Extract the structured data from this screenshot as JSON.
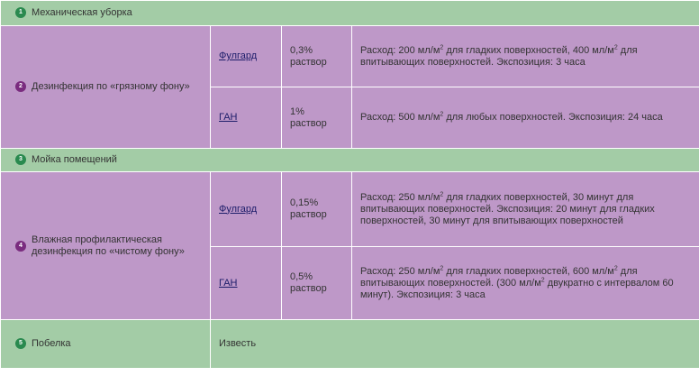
{
  "colors": {
    "green_row": "#a3cca6",
    "purple_row": "#be98c8",
    "green_badge": "#2a8a4f",
    "purple_badge": "#7a2c7f"
  },
  "stages": [
    {
      "number": "1",
      "label": "Механическая уборка"
    },
    {
      "number": "2",
      "label": "Дезинфекция по «грязному фону»",
      "products": [
        {
          "name": "Фулгард",
          "conc_value": "0,3%",
          "conc_unit": "раствор",
          "desc_a": "Расход: 200 мл/м",
          "desc_sup_a": "2",
          "desc_b": " для гладких поверхностей, 400 мл/м",
          "desc_sup_b": "2",
          "desc_c": " для впитывающих поверхностей. Экспозиция: 3 часа"
        },
        {
          "name": "ГАН",
          "conc_value": "1%",
          "conc_unit": "раствор",
          "desc_a": "Расход: 500 мл/м",
          "desc_sup_a": "2",
          "desc_b": " для любых поверхностей. Экспозиция: 24 часа"
        }
      ]
    },
    {
      "number": "3",
      "label": "Мойка помещений"
    },
    {
      "number": "4",
      "label_line1": "Влажная профилактическая",
      "label_line2": "дезинфекция по «чистому фону»",
      "products": [
        {
          "name": "Фулгард",
          "conc_value": "0,15%",
          "conc_unit": "раствор",
          "desc_a": "Расход: 250 мл/м",
          "desc_sup_a": "2",
          "desc_b": " для гладких поверхностей, 30 минут для впитывающих поверхностей. Экспозиция: 20 минут для гладких поверхностей, 30 минут для впитывающих поверхностей"
        },
        {
          "name": "ГАН",
          "conc_value": "0,5%",
          "conc_unit": "раствор",
          "desc_a": "Расход: 250 мл/м",
          "desc_sup_a": "2",
          "desc_b": " для гладких поверхностей, 600 мл/м",
          "desc_sup_b": "2",
          "desc_c": " для впитывающих поверхностей. (300 мл/м",
          "desc_sup_c": "2",
          "desc_d": " двукратно с интервалом 60 минут). Экспозиция: 3 часа"
        }
      ]
    },
    {
      "number": "5",
      "label": "Побелка",
      "note": "Известь"
    }
  ]
}
